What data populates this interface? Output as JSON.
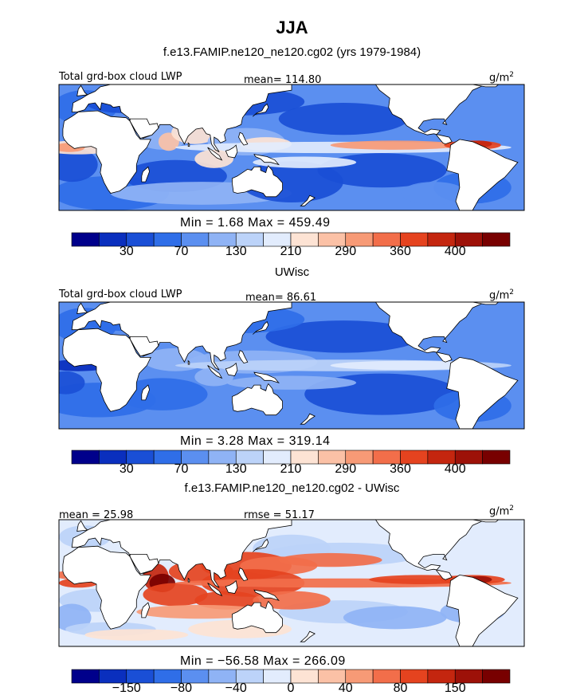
{
  "page_title": "JJA",
  "page_subtitle": "f.e13.FAMIP.ne120_ne120.cg02 (yrs 1979-1984)",
  "colors": {
    "scale": [
      "#00008b",
      "#0a2fbe",
      "#1a4fd6",
      "#2f6ee8",
      "#5b8ff0",
      "#8fb3f5",
      "#bcd3f9",
      "#e2ecfd",
      "#fde3d4",
      "#fbc1a6",
      "#f79a76",
      "#f26e4a",
      "#e5431f",
      "#c4260f",
      "#9d1108",
      "#780000"
    ],
    "land": "#ffffff",
    "coast": "#000000"
  },
  "chart_data": [
    {
      "type": "heatmap",
      "panel_label": "Total grd-box cloud LWP",
      "mean_text": "mean= 114.80",
      "units": "g/m",
      "units_sup": "2",
      "min_max_text": "Min =    1.68  Max = 459.49",
      "min": 1.68,
      "max": 459.49,
      "mean": 114.8,
      "colorbar_levels": [
        10,
        30,
        50,
        70,
        90,
        130,
        170,
        210,
        250,
        290,
        330,
        360,
        380,
        400,
        420
      ],
      "colorbar_tick_labels": [
        "30",
        "70",
        "130",
        "210",
        "290",
        "360",
        "400"
      ],
      "level_range": [
        0,
        440
      ]
    },
    {
      "type": "heatmap",
      "panel_title": "UWisc",
      "panel_label": "Total grd-box cloud LWP",
      "mean_text": "mean=  86.61",
      "units": "g/m",
      "units_sup": "2",
      "min_max_text": "Min =    3.28  Max = 319.14",
      "min": 3.28,
      "max": 319.14,
      "mean": 86.61,
      "colorbar_levels": [
        10,
        30,
        50,
        70,
        90,
        130,
        170,
        210,
        250,
        290,
        330,
        360,
        380,
        400,
        420
      ],
      "colorbar_tick_labels": [
        "30",
        "70",
        "130",
        "210",
        "290",
        "360",
        "400"
      ],
      "level_range": [
        0,
        440
      ]
    },
    {
      "type": "heatmap",
      "panel_title": "f.e13.FAMIP.ne120_ne120.cg02 - UWisc",
      "mean_text": "mean =  25.98",
      "rmse_text": "rmse =  51.17",
      "units": "g/m",
      "units_sup": "2",
      "min_max_text": "Min = −56.58  Max = 266.09",
      "min": -56.58,
      "max": 266.09,
      "mean": 25.98,
      "rmse": 51.17,
      "colorbar_levels": [
        -200,
        -150,
        -120,
        -80,
        -60,
        -40,
        -20,
        0,
        20,
        40,
        60,
        80,
        120,
        150,
        200
      ],
      "colorbar_tick_labels": [
        "−150",
        "−80",
        "−40",
        "0",
        "40",
        "80",
        "150"
      ],
      "level_range": [
        -250,
        250
      ]
    }
  ]
}
